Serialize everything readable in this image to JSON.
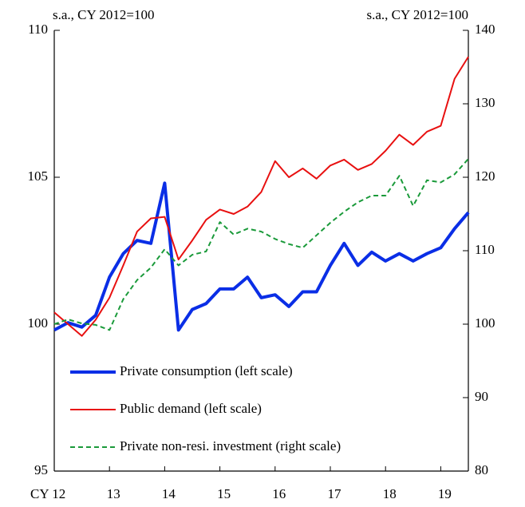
{
  "chart_data": {
    "type": "line",
    "left_axis_label": "s.a., CY 2012=100",
    "right_axis_label": "s.a., CY 2012=100",
    "categories": [
      "CY 12",
      null,
      null,
      null,
      "13",
      null,
      null,
      null,
      "14",
      null,
      null,
      null,
      "15",
      null,
      null,
      null,
      "16",
      null,
      null,
      null,
      "17",
      null,
      null,
      null,
      "18",
      null,
      null,
      null,
      "19",
      null,
      null
    ],
    "series": [
      {
        "name": "Private consumption (left scale)",
        "color": "#0a2ee6",
        "width": 4,
        "dash": "solid",
        "axis": "y",
        "values": [
          99.8,
          100.05,
          99.9,
          100.3,
          101.6,
          102.4,
          102.85,
          102.75,
          104.8,
          99.8,
          100.5,
          100.7,
          101.2,
          101.2,
          101.6,
          100.9,
          101.0,
          100.6,
          101.1,
          101.1,
          102.0,
          102.75,
          102.0,
          102.45,
          102.15,
          102.4,
          102.15,
          102.4,
          102.6,
          103.25,
          103.8
        ]
      },
      {
        "name": "Public demand (left scale)",
        "color": "#e81010",
        "width": 2,
        "dash": "solid",
        "axis": "y",
        "values": [
          100.4,
          100.0,
          99.6,
          100.15,
          100.9,
          102.0,
          103.15,
          103.6,
          103.65,
          102.2,
          102.85,
          103.55,
          103.9,
          103.75,
          104.0,
          104.5,
          105.55,
          105.0,
          105.3,
          104.95,
          105.4,
          105.6,
          105.25,
          105.45,
          105.9,
          106.45,
          106.1,
          106.55,
          106.75,
          108.35,
          109.1
        ]
      },
      {
        "name": "Private non-resi. investment (right scale)",
        "color": "#1a9a3a",
        "width": 2,
        "dash": "dashed",
        "axis": "y2",
        "values": [
          100.0,
          100.65,
          100.1,
          99.9,
          99.2,
          103.4,
          106.0,
          107.7,
          110.2,
          108.0,
          109.45,
          109.9,
          113.9,
          112.2,
          113.0,
          112.6,
          111.6,
          110.9,
          110.4,
          112.1,
          113.8,
          115.3,
          116.6,
          117.5,
          117.5,
          120.2,
          116.1,
          119.6,
          119.3,
          120.4,
          122.5
        ]
      }
    ],
    "ylim": [
      95,
      110
    ],
    "yticks": [
      95,
      100,
      105,
      110
    ],
    "y2lim": [
      80,
      140
    ],
    "y2ticks": [
      80,
      90,
      100,
      110,
      120,
      130,
      140
    ],
    "legend": "lower left"
  }
}
